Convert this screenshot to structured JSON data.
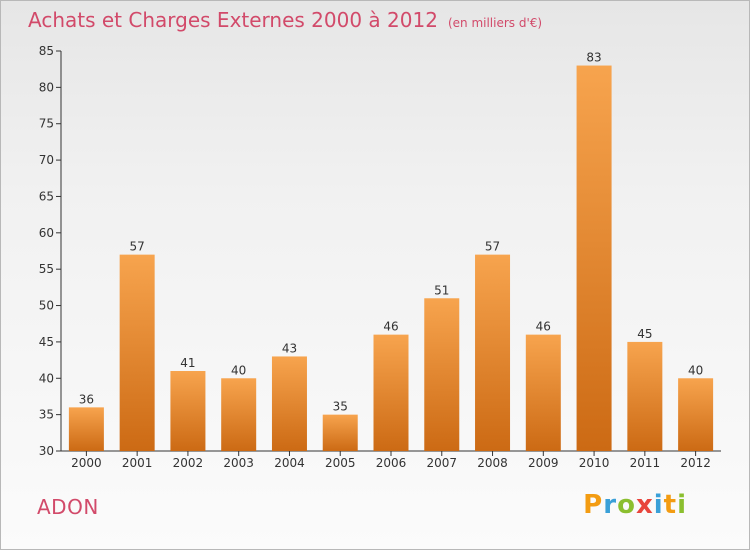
{
  "header": {
    "title": "Achats et Charges Externes 2000 à 2012",
    "subtitle": "(en milliers d'€)"
  },
  "footer": {
    "commune": "ADON",
    "brand_letters": [
      "P",
      "r",
      "o",
      "x",
      "i",
      "t",
      "i"
    ],
    "brand_colors": [
      "#f39c12",
      "#3aa0d8",
      "#8bbf2f",
      "#e8453c",
      "#3aa0d8",
      "#f39c12",
      "#8bbf2f"
    ]
  },
  "chart_data": {
    "type": "bar",
    "categories": [
      "2000",
      "2001",
      "2002",
      "2003",
      "2004",
      "2005",
      "2006",
      "2007",
      "2008",
      "2009",
      "2010",
      "2011",
      "2012"
    ],
    "values": [
      36,
      57,
      41,
      40,
      43,
      35,
      46,
      51,
      57,
      46,
      83,
      45,
      40
    ],
    "ylim": [
      30,
      85
    ],
    "yticks": [
      30,
      35,
      40,
      45,
      50,
      55,
      60,
      65,
      70,
      75,
      80,
      85
    ],
    "grid": false,
    "colors": {
      "bar_top": "#f7a44e",
      "bar_bottom": "#cc6a14",
      "axis": "#333333",
      "text": "#333333"
    }
  }
}
